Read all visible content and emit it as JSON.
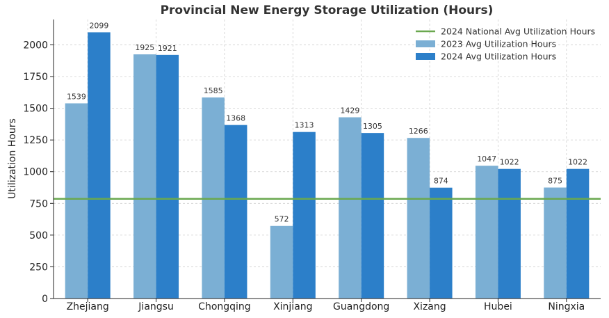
{
  "chart_data": {
    "type": "bar",
    "title": "Provincial New Energy Storage Utilization (Hours)",
    "xlabel": "",
    "ylabel": "Utilization Hours",
    "ylim": [
      0,
      2200
    ],
    "yticks": [
      0,
      250,
      500,
      750,
      1000,
      1250,
      1500,
      1750,
      2000
    ],
    "grid": true,
    "legend_position": "top-right",
    "categories": [
      "Zhejiang",
      "Jiangsu",
      "Chongqing",
      "Xinjiang",
      "Guangdong",
      "Xizang",
      "Hubei",
      "Ningxia"
    ],
    "series": [
      {
        "name": "2023 Avg Utilization Hours",
        "color": "#7bafd4",
        "values": [
          1539,
          1925,
          1585,
          572,
          1429,
          1266,
          1047,
          875
        ]
      },
      {
        "name": "2024 Avg Utilization Hours",
        "color": "#2c7fc9",
        "values": [
          2099,
          1921,
          1368,
          1313,
          1305,
          874,
          1022,
          1022
        ]
      }
    ],
    "reference_line": {
      "name": "2024 National Avg Utilization Hours",
      "color": "#6aa84f",
      "value": 786
    }
  }
}
